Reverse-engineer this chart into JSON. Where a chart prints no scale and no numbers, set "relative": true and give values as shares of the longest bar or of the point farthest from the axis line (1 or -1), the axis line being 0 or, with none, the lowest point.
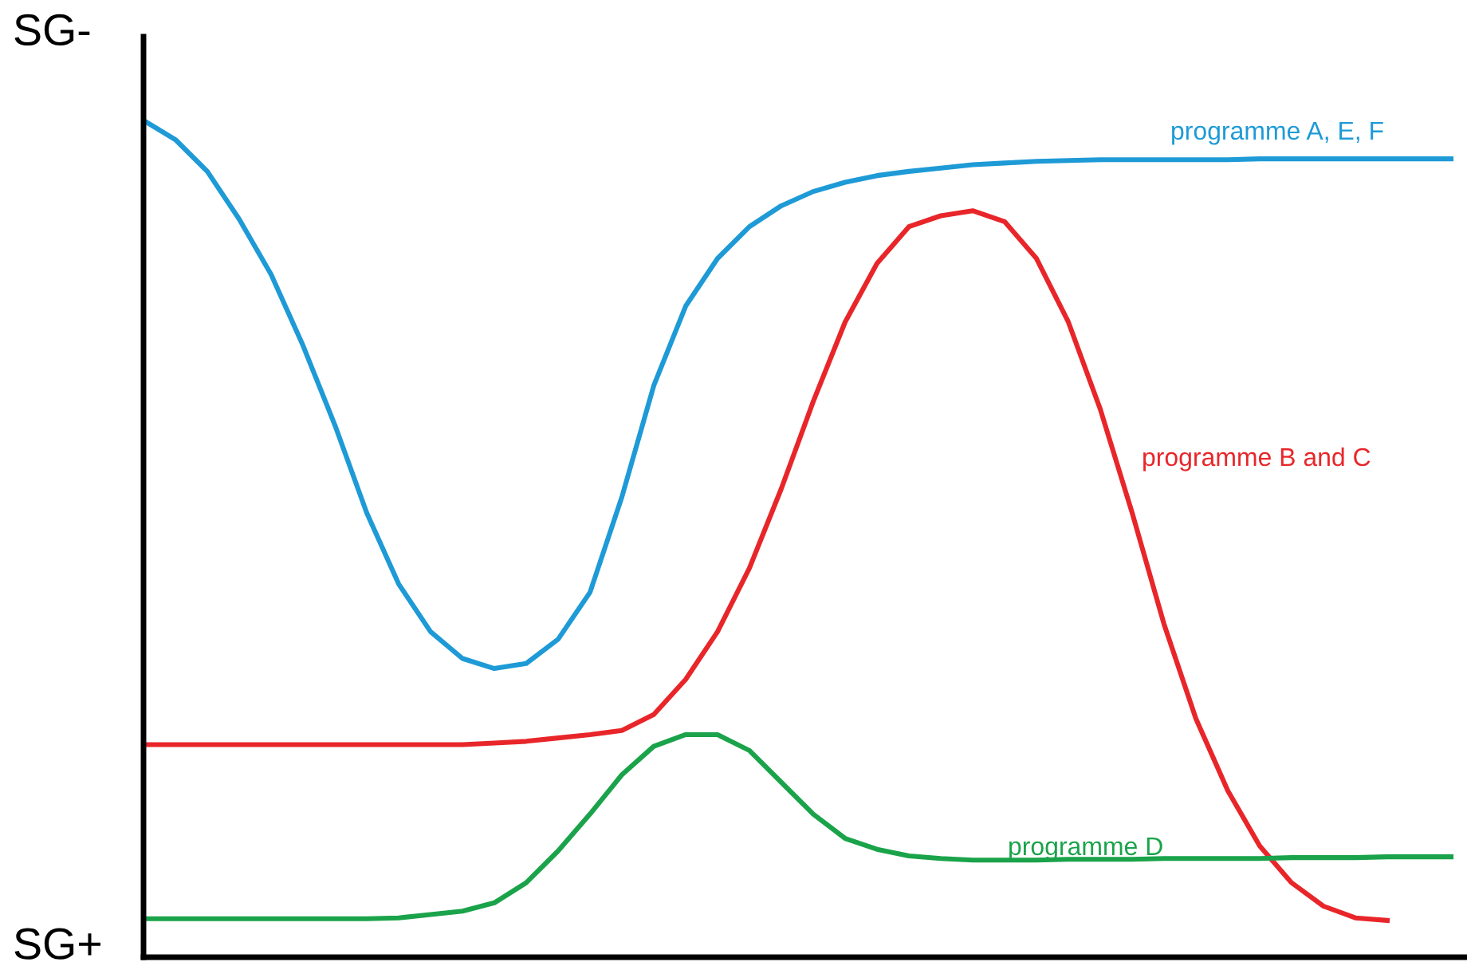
{
  "chart_data": {
    "type": "line",
    "relative": true,
    "legend": false,
    "marker": "none",
    "line_style": "solid",
    "categories": [
      null,
      null,
      null,
      null,
      null,
      null,
      null,
      null,
      null,
      null,
      null,
      null,
      null,
      null,
      null,
      null,
      null,
      null,
      null,
      null,
      null,
      null,
      null,
      null,
      null,
      null,
      null,
      null,
      null,
      null,
      null,
      null,
      null,
      null,
      null,
      null,
      null,
      null,
      null,
      null,
      null,
      null
    ],
    "series": [
      {
        "name": "programme A, E, F",
        "color": "#1e9ad6",
        "values": [
          1.0,
          0.977,
          0.939,
          0.882,
          0.816,
          0.731,
          0.636,
          0.531,
          0.446,
          0.389,
          0.357,
          0.345,
          0.351,
          0.38,
          0.436,
          0.55,
          0.683,
          0.778,
          0.835,
          0.873,
          0.898,
          0.915,
          0.926,
          0.934,
          0.939,
          0.943,
          0.947,
          0.949,
          0.951,
          0.952,
          0.953,
          0.953,
          0.953,
          0.953,
          0.953,
          0.954,
          0.954,
          0.954,
          0.954,
          0.954,
          0.954,
          0.954
        ]
      },
      {
        "name": "programme B and C",
        "color": "#e8262a",
        "values": [
          0.254,
          0.254,
          0.254,
          0.254,
          0.254,
          0.254,
          0.254,
          0.254,
          0.254,
          0.254,
          0.254,
          0.256,
          0.258,
          0.262,
          0.266,
          0.271,
          0.29,
          0.332,
          0.389,
          0.465,
          0.56,
          0.664,
          0.759,
          0.829,
          0.873,
          0.886,
          0.892,
          0.879,
          0.835,
          0.759,
          0.655,
          0.531,
          0.398,
          0.285,
          0.199,
          0.133,
          0.089,
          0.061,
          0.047,
          0.044,
          null,
          null
        ]
      },
      {
        "name": "programme D",
        "color": "#1aa34a",
        "values": [
          0.046,
          0.046,
          0.046,
          0.046,
          0.046,
          0.046,
          0.046,
          0.046,
          0.047,
          0.051,
          0.055,
          0.065,
          0.089,
          0.127,
          0.171,
          0.218,
          0.252,
          0.266,
          0.266,
          0.247,
          0.209,
          0.171,
          0.142,
          0.129,
          0.121,
          0.118,
          0.116,
          0.116,
          0.116,
          0.117,
          0.117,
          0.117,
          0.118,
          0.118,
          0.118,
          0.118,
          0.119,
          0.119,
          0.119,
          0.12,
          0.12,
          0.12
        ]
      }
    ],
    "annotations": [
      "SG-",
      "SG+"
    ]
  }
}
